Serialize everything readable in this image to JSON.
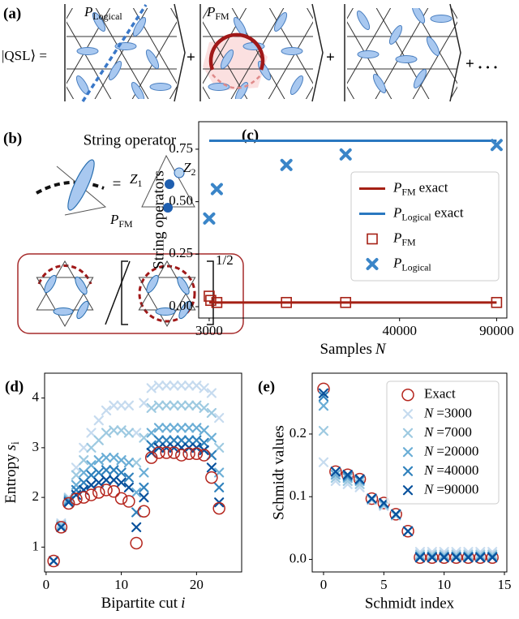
{
  "panel_labels": [
    "(a)",
    "(b)",
    "(c)",
    "(d)",
    "(e)"
  ],
  "diagrams": {
    "a": {
      "lhs": "|QSL⟩ =",
      "logical": {
        "symbol": "P",
        "subscript": "Logical"
      },
      "fm": {
        "symbol": "P",
        "subscript": "FM"
      },
      "plus": [
        "+",
        "+"
      ],
      "ellipsis": "+ . . ."
    },
    "b": {
      "title": "String operator",
      "equals": "=",
      "z1": {
        "symbol": "Z",
        "subscript": "1"
      },
      "z2": {
        "symbol": "Z",
        "subscript": "2"
      },
      "pfm": {
        "symbol": "P",
        "subscript": "FM"
      },
      "exponent": "1/2"
    }
  },
  "chart_data": [
    {
      "type": "scatter",
      "xlabel": {
        "text": "Samples",
        "symbol": "N"
      },
      "ylabel": "String operators",
      "xscale": "power",
      "xpower": 0.3,
      "xlim": [
        2400,
        97000
      ],
      "xticks": [
        3000,
        40000,
        90000
      ],
      "ylim": [
        -0.054,
        0.881
      ],
      "yticks": [
        {
          "value": 0,
          "label": "0.00"
        },
        0.25,
        {
          "value": 0.5,
          "label": "0.50"
        },
        0.75
      ],
      "legend": "center right",
      "series": [
        {
          "name": {
            "symbol": "P",
            "subscript": "FM",
            "suffix": "exact"
          },
          "color": "#a52014",
          "marker": "line",
          "x": [
            3000,
            90000
          ],
          "values": [
            0.02,
            0.02
          ]
        },
        {
          "name": {
            "symbol": "P",
            "subscript": "Logical",
            "suffix": "exact"
          },
          "color": "#2a78c0",
          "marker": "line",
          "x": [
            3000,
            90000
          ],
          "values": [
            0.79,
            0.79
          ]
        },
        {
          "name": {
            "symbol": "P",
            "subscript": "FM"
          },
          "color": "#a52014",
          "marker": "square",
          "x": [
            3000,
            3100,
            3500,
            11000,
            23000,
            90000
          ],
          "values": [
            0.05,
            0.03,
            0.02,
            0.02,
            0.02,
            0.02
          ]
        },
        {
          "name": {
            "symbol": "P",
            "subscript": "Logical"
          },
          "color": "#3a85c8",
          "marker": "cross",
          "x": [
            3000,
            3500,
            11000,
            23000,
            90000
          ],
          "values": [
            0.42,
            0.56,
            0.675,
            0.725,
            0.77
          ]
        }
      ]
    },
    {
      "type": "scatter",
      "xlabel": {
        "text": "Bipartite cut",
        "symbol": "i"
      },
      "ylabel": {
        "text": "Entropy",
        "symbol": "s",
        "subscript": "i"
      },
      "xlim": [
        -0.2,
        26
      ],
      "xticks": [
        0,
        10,
        20
      ],
      "ylim": [
        0.5,
        4.5
      ],
      "yticks": [
        1,
        2,
        3,
        4
      ],
      "x": [
        1,
        2,
        3,
        4,
        5,
        6,
        7,
        8,
        9,
        10,
        11,
        12,
        13,
        14,
        15,
        16,
        17,
        18,
        19,
        20,
        21,
        22,
        23
      ],
      "series": [
        {
          "color": "#c6dbef",
          "marker": "xthin",
          "values": [
            0.72,
            1.48,
            2.0,
            2.6,
            3.0,
            3.3,
            3.55,
            3.75,
            3.85,
            3.85,
            3.85,
            3.3,
            3.9,
            4.2,
            4.25,
            4.25,
            4.25,
            4.25,
            4.25,
            4.25,
            4.2,
            4.1,
            3.6
          ]
        },
        {
          "color": "#9ecae1",
          "marker": "xthin",
          "values": [
            0.72,
            1.45,
            1.98,
            2.45,
            2.75,
            3.0,
            3.15,
            3.3,
            3.35,
            3.35,
            3.3,
            2.7,
            3.2,
            3.8,
            3.85,
            3.85,
            3.85,
            3.85,
            3.85,
            3.85,
            3.8,
            3.7,
            3.0
          ]
        },
        {
          "color": "#6baed6",
          "marker": "xthin",
          "values": [
            0.72,
            1.42,
            1.95,
            2.25,
            2.5,
            2.65,
            2.75,
            2.8,
            2.8,
            2.75,
            2.7,
            2.1,
            2.5,
            3.3,
            3.4,
            3.4,
            3.4,
            3.4,
            3.4,
            3.4,
            3.35,
            3.2,
            2.5
          ]
        },
        {
          "color": "#3182bd",
          "marker": "xthin",
          "values": [
            0.72,
            1.4,
            1.92,
            2.15,
            2.3,
            2.45,
            2.5,
            2.55,
            2.55,
            2.5,
            2.4,
            1.7,
            2.2,
            3.05,
            3.15,
            3.15,
            3.15,
            3.15,
            3.15,
            3.15,
            3.1,
            2.85,
            2.2
          ]
        },
        {
          "color": "#08519c",
          "marker": "xthin",
          "values": [
            0.72,
            1.4,
            1.9,
            2.05,
            2.15,
            2.25,
            2.3,
            2.35,
            2.35,
            2.3,
            2.2,
            1.4,
            2.0,
            2.9,
            3.0,
            3.0,
            3.0,
            3.0,
            3.0,
            3.0,
            2.95,
            2.6,
            1.9
          ]
        },
        {
          "color": "#b5261e",
          "marker": "circle",
          "values": [
            0.72,
            1.4,
            1.88,
            1.97,
            2.0,
            2.05,
            2.1,
            2.15,
            2.12,
            1.98,
            1.92,
            1.08,
            1.72,
            2.8,
            2.9,
            2.9,
            2.9,
            2.85,
            2.88,
            2.88,
            2.85,
            2.4,
            1.78
          ]
        }
      ]
    },
    {
      "type": "scatter",
      "xlabel": "Schmidt index",
      "ylabel": "Schmidt values",
      "xlim": [
        -0.94,
        15.2
      ],
      "xticks": [
        0,
        5,
        10,
        15
      ],
      "ylim": [
        -0.02,
        0.297
      ],
      "yticks": [
        {
          "value": 0,
          "label": "0.0"
        },
        0.1,
        0.2
      ],
      "legend": "upper right",
      "x": [
        0,
        1,
        2,
        3,
        4,
        5,
        6,
        7,
        8,
        9,
        10,
        11,
        12,
        13,
        14
      ],
      "series": [
        {
          "name": "Exact",
          "color": "#b5261e",
          "marker": "circle",
          "values": [
            0.272,
            0.14,
            0.135,
            0.128,
            0.097,
            0.09,
            0.072,
            0.045,
            0.003,
            0.003,
            0.003,
            0.003,
            0.003,
            0.003,
            0.003
          ]
        },
        {
          "name": {
            "symbol": "N",
            "suffix": "=3000"
          },
          "color": "#c6dbef",
          "marker": "xthin",
          "values": [
            0.155,
            0.125,
            0.12,
            0.115,
            0.095,
            0.085,
            0.07,
            0.045,
            0.012,
            0.012,
            0.012,
            0.012,
            0.012,
            0.012,
            0.012
          ]
        },
        {
          "name": {
            "symbol": "N",
            "suffix": "=7000"
          },
          "color": "#9ecae1",
          "marker": "xthin",
          "values": [
            0.205,
            0.13,
            0.125,
            0.12,
            0.095,
            0.087,
            0.07,
            0.045,
            0.008,
            0.008,
            0.008,
            0.008,
            0.008,
            0.008,
            0.008
          ]
        },
        {
          "name": {
            "symbol": "N",
            "suffix": "=20000"
          },
          "color": "#6baed6",
          "marker": "xthin",
          "values": [
            0.245,
            0.135,
            0.13,
            0.125,
            0.097,
            0.088,
            0.072,
            0.045,
            0.005,
            0.005,
            0.005,
            0.005,
            0.005,
            0.005,
            0.005
          ]
        },
        {
          "name": {
            "symbol": "N",
            "suffix": "=40000"
          },
          "color": "#3182bd",
          "marker": "xthin",
          "values": [
            0.26,
            0.14,
            0.133,
            0.127,
            0.097,
            0.09,
            0.072,
            0.045,
            0.004,
            0.004,
            0.004,
            0.004,
            0.004,
            0.004,
            0.004
          ]
        },
        {
          "name": {
            "symbol": "N",
            "suffix": "=90000"
          },
          "color": "#08519c",
          "marker": "xthin",
          "values": [
            0.265,
            0.14,
            0.135,
            0.128,
            0.097,
            0.09,
            0.072,
            0.045,
            0.003,
            0.003,
            0.003,
            0.003,
            0.003,
            0.003,
            0.003
          ]
        }
      ]
    }
  ]
}
